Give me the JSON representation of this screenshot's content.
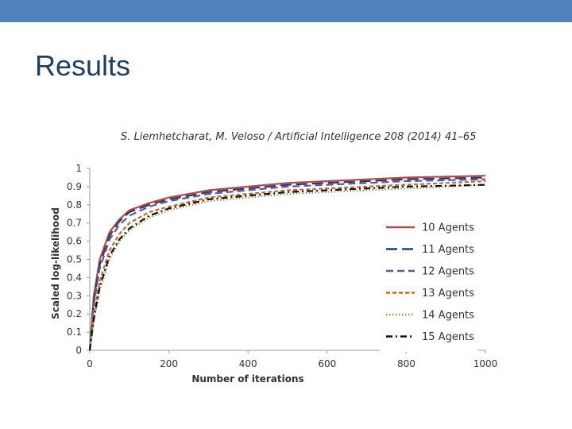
{
  "slide": {
    "title": "Results",
    "citation": "S. Liemhetcharat, M. Veloso / Artificial Intelligence 208 (2014) 41–65"
  },
  "colors": {
    "top_bar": "#4f81bd",
    "title": "#1f3f60"
  },
  "chart_data": {
    "type": "line",
    "title": "",
    "xlabel": "Number of iterations",
    "ylabel": "Scaled log-likelihood",
    "xlim": [
      0,
      1000
    ],
    "ylim": [
      0,
      1
    ],
    "x_ticks": [
      "0",
      "200",
      "400",
      "600",
      "800",
      "1000"
    ],
    "y_ticks": [
      "0",
      "0.1",
      "0.2",
      "0.3",
      "0.4",
      "0.5",
      "0.6",
      "0.7",
      "0.8",
      "0.9",
      "1"
    ],
    "grid": false,
    "legend": "right",
    "x": [
      0,
      10,
      25,
      50,
      75,
      100,
      150,
      200,
      300,
      400,
      500,
      600,
      700,
      800,
      900,
      1000
    ],
    "series": [
      {
        "name": "10 Agents",
        "color": "#b5484c",
        "style": "solid",
        "values": [
          0,
          0.3,
          0.5,
          0.65,
          0.72,
          0.77,
          0.81,
          0.84,
          0.88,
          0.9,
          0.92,
          0.93,
          0.94,
          0.95,
          0.955,
          0.96
        ]
      },
      {
        "name": "11 Agents",
        "color": "#1f3f6e",
        "style": "longdash",
        "values": [
          0,
          0.27,
          0.47,
          0.63,
          0.71,
          0.76,
          0.8,
          0.83,
          0.87,
          0.89,
          0.91,
          0.92,
          0.93,
          0.94,
          0.945,
          0.95
        ]
      },
      {
        "name": "12 Agents",
        "color": "#5e5890",
        "style": "dash",
        "values": [
          0,
          0.25,
          0.45,
          0.61,
          0.69,
          0.74,
          0.79,
          0.82,
          0.86,
          0.88,
          0.9,
          0.91,
          0.92,
          0.93,
          0.935,
          0.94
        ]
      },
      {
        "name": "13 Agents",
        "color": "#c8692c",
        "style": "shortdash",
        "values": [
          0,
          0.2,
          0.38,
          0.55,
          0.64,
          0.7,
          0.76,
          0.79,
          0.84,
          0.86,
          0.88,
          0.89,
          0.9,
          0.91,
          0.92,
          0.93
        ]
      },
      {
        "name": "14 Agents",
        "color": "#8a9a52",
        "style": "dot",
        "values": [
          0,
          0.16,
          0.33,
          0.5,
          0.6,
          0.66,
          0.73,
          0.77,
          0.82,
          0.84,
          0.86,
          0.87,
          0.88,
          0.89,
          0.9,
          0.91
        ]
      },
      {
        "name": "15 Agents",
        "color": "#111111",
        "style": "dashdot",
        "values": [
          0,
          0.17,
          0.35,
          0.52,
          0.61,
          0.67,
          0.74,
          0.78,
          0.83,
          0.85,
          0.87,
          0.88,
          0.89,
          0.9,
          0.905,
          0.91
        ]
      }
    ]
  }
}
